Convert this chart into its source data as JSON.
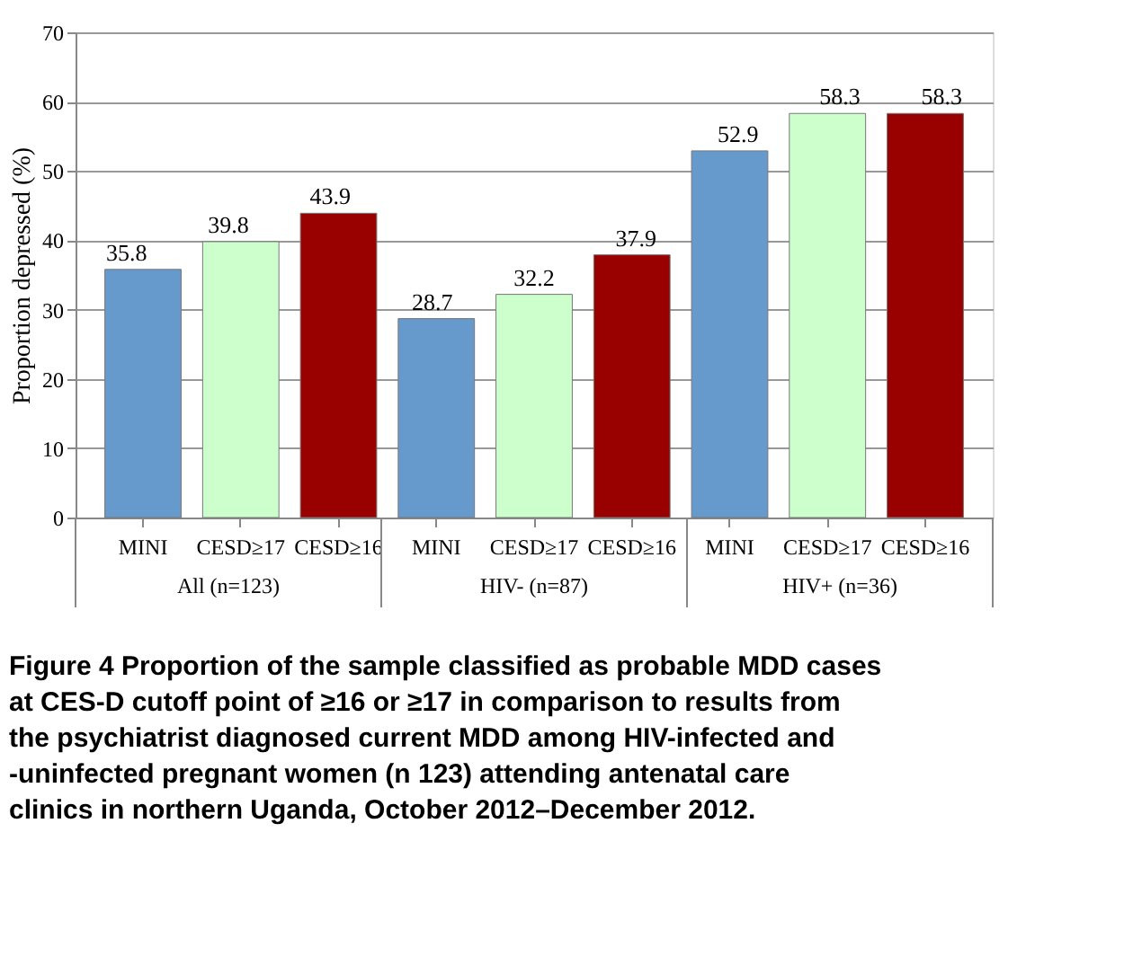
{
  "chart_data": {
    "type": "bar",
    "title": "Figure 4 Proportion of the sample classified as probable MDD cases at CES-D cutoff point of ≥16 or ≥17 in comparison to results from the psychiatrist diagnosed current MDD among HIV-infected and -uninfected pregnant women (n 123) attending antenatal care clinics in northern Uganda, October 2012–December 2012.",
    "ylabel": "Proportion depressed (%)",
    "categories": [
      "MINI",
      "CESD≥17",
      "CESD≥16",
      "MINI",
      "CESD≥17",
      "CESD≥16",
      "MINI",
      "CESD≥17",
      "CESD≥16"
    ],
    "values": [
      35.8,
      39.8,
      43.9,
      28.7,
      32.2,
      37.9,
      52.9,
      58.3,
      58.3
    ],
    "colors": [
      "#6699cc",
      "#ccffcc",
      "#990000",
      "#6699cc",
      "#ccffcc",
      "#990000",
      "#6699cc",
      "#ccffcc",
      "#990000"
    ],
    "annotations": [
      "All (n=123)",
      "HIV- (n=87)",
      "HIV+ (n=36)"
    ],
    "ylim": [
      0,
      70
    ],
    "yticks": [
      0,
      10,
      20,
      30,
      40,
      50,
      60,
      70
    ],
    "grid": "y",
    "data_labels": true,
    "legend": false
  }
}
